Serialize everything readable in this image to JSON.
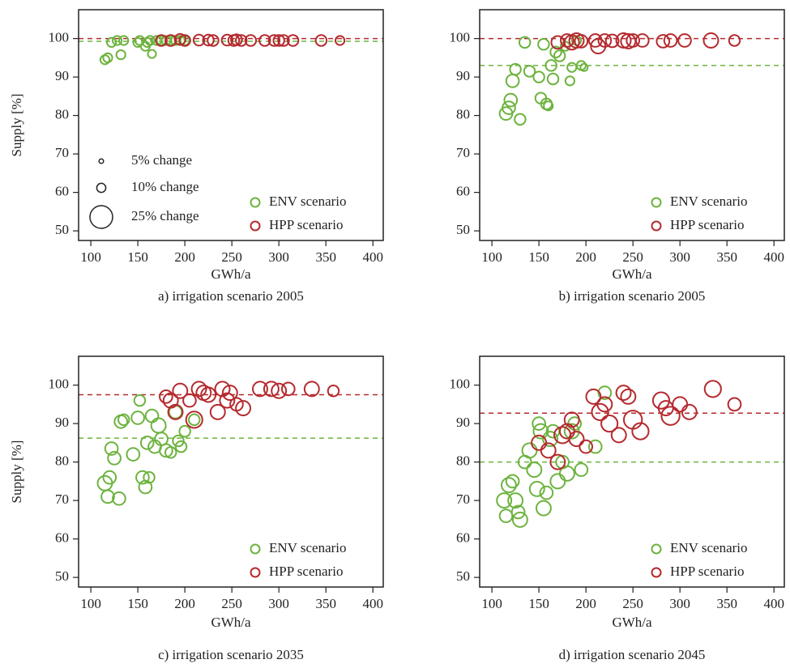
{
  "chart_data": [
    {
      "type": "scatter",
      "caption": "a) irrigation scenario 2005",
      "xlabel": "GWh/a",
      "ylabel": "Supply [%]",
      "xlim": [
        87,
        411
      ],
      "ylim": [
        47.5,
        107.5
      ],
      "xticks": [
        100,
        150,
        200,
        250,
        300,
        350,
        400
      ],
      "yticks": [
        50,
        60,
        70,
        80,
        90,
        100
      ],
      "legend": "lower right",
      "size_legend": {
        "labels": [
          "5% change",
          "10% change",
          "25% change"
        ],
        "sizes": [
          5,
          10,
          25
        ]
      },
      "series": [
        {
          "name": "ENV scenario",
          "color": "#6db33f",
          "reference": 99.3,
          "x": [
            115,
            118,
            122,
            128,
            135,
            132,
            150,
            152,
            158,
            160,
            165,
            163,
            170,
            175,
            180,
            185,
            190,
            195,
            200
          ],
          "values": [
            94.5,
            95,
            99,
            99.5,
            99.5,
            95.8,
            99,
            99.5,
            98,
            99,
            96,
            99.5,
            99.5,
            99.5,
            99.5,
            99.5,
            99.5,
            99.5,
            99.5
          ],
          "sizes": [
            10,
            10,
            10,
            10,
            10,
            10,
            10,
            10,
            10,
            10,
            9,
            10,
            10,
            10,
            10,
            10,
            10,
            10,
            10
          ]
        },
        {
          "name": "HPP scenario",
          "color": "#b52a2e",
          "reference": 100,
          "x": [
            175,
            185,
            195,
            200,
            215,
            225,
            230,
            245,
            252,
            255,
            260,
            270,
            285,
            295,
            300,
            305,
            315,
            345,
            365
          ],
          "values": [
            99.5,
            99.5,
            99.8,
            99.5,
            99.6,
            99.6,
            99.5,
            99.6,
            99.5,
            99.7,
            99.5,
            99.5,
            99.5,
            99.5,
            99.5,
            99.5,
            99.5,
            99.5,
            99.5
          ],
          "sizes": [
            12,
            12,
            12,
            12,
            12,
            12,
            12,
            12,
            12,
            12,
            12,
            12,
            12,
            12,
            12,
            12,
            12,
            12,
            10
          ]
        }
      ]
    },
    {
      "type": "scatter",
      "caption": "b) irrigation scenario 2005",
      "xlabel": "GWh/a",
      "xlim": [
        87,
        411
      ],
      "ylim": [
        47.5,
        107.5
      ],
      "xticks": [
        100,
        150,
        200,
        250,
        300,
        350,
        400
      ],
      "yticks": [
        50,
        60,
        70,
        80,
        90,
        100
      ],
      "legend": "lower right",
      "series": [
        {
          "name": "ENV scenario",
          "color": "#6db33f",
          "reference": 93,
          "x": [
            115,
            118,
            120,
            122,
            125,
            130,
            135,
            140,
            150,
            152,
            155,
            158,
            160,
            163,
            165,
            168,
            172,
            178,
            183,
            185,
            190,
            195,
            198
          ],
          "values": [
            80.5,
            82,
            84,
            89,
            92,
            79,
            99,
            91.5,
            90,
            84.5,
            98.5,
            83,
            82.5,
            93,
            89.5,
            96.5,
            95.5,
            98,
            89,
            92.5,
            99.5,
            93,
            92.5
          ],
          "sizes": [
            14,
            14,
            14,
            14,
            12,
            12,
            12,
            12,
            12,
            12,
            12,
            12,
            10,
            12,
            12,
            12,
            12,
            10,
            10,
            10,
            10,
            10,
            8
          ]
        },
        {
          "name": "HPP scenario",
          "color": "#b52a2e",
          "reference": 100,
          "x": [
            170,
            180,
            185,
            190,
            195,
            210,
            213,
            220,
            228,
            240,
            245,
            250,
            260,
            282,
            290,
            305,
            333,
            358
          ],
          "values": [
            99,
            99.5,
            99,
            99.5,
            99.3,
            99.5,
            98,
            99.5,
            99.4,
            99.5,
            99.3,
            99.5,
            99.5,
            99.3,
            99.5,
            99.5,
            99.5,
            99.5
          ],
          "sizes": [
            14,
            14,
            16,
            16,
            14,
            14,
            16,
            14,
            14,
            16,
            16,
            14,
            14,
            14,
            14,
            14,
            16,
            12
          ]
        }
      ]
    },
    {
      "type": "scatter",
      "caption": "c) irrigation scenario 2035",
      "xlabel": "GWh/a",
      "ylabel": "Supply [%]",
      "xlim": [
        87,
        411
      ],
      "ylim": [
        47.5,
        107.5
      ],
      "xticks": [
        100,
        150,
        200,
        250,
        300,
        350,
        400
      ],
      "yticks": [
        50,
        60,
        70,
        80,
        90,
        100
      ],
      "legend": "lower right",
      "series": [
        {
          "name": "ENV scenario",
          "color": "#6db33f",
          "reference": 86.2,
          "x": [
            115,
            118,
            120,
            122,
            125,
            130,
            132,
            135,
            145,
            150,
            152,
            155,
            158,
            160,
            162,
            165,
            168,
            172,
            175,
            180,
            185,
            190,
            193,
            196,
            200,
            210
          ],
          "values": [
            74.5,
            71,
            76,
            83.5,
            81,
            70.5,
            90.5,
            91,
            82,
            91.5,
            96,
            76,
            73.5,
            85,
            76,
            92,
            84,
            89.5,
            86,
            83,
            82.5,
            93,
            85.5,
            84,
            88,
            91
          ],
          "sizes": [
            16,
            14,
            14,
            14,
            14,
            14,
            14,
            12,
            14,
            14,
            12,
            14,
            14,
            14,
            12,
            14,
            14,
            16,
            14,
            14,
            12,
            14,
            12,
            12,
            12,
            12
          ]
        },
        {
          "name": "HPP scenario",
          "color": "#b52a2e",
          "reference": 97.5,
          "x": [
            180,
            185,
            190,
            195,
            205,
            210,
            215,
            220,
            225,
            235,
            240,
            245,
            248,
            255,
            262,
            280,
            292,
            300,
            310,
            335,
            358
          ],
          "values": [
            97,
            96,
            93,
            98.5,
            96,
            91,
            99,
            98,
            97.5,
            93,
            99,
            96,
            98,
            95,
            94,
            99,
            99,
            98.5,
            99,
            99,
            98.5
          ],
          "sizes": [
            14,
            16,
            16,
            16,
            14,
            18,
            16,
            16,
            16,
            16,
            16,
            16,
            16,
            14,
            16,
            16,
            16,
            16,
            14,
            16,
            12
          ]
        }
      ]
    },
    {
      "type": "scatter",
      "caption": "d) irrigation scenario 2045",
      "xlabel": "GWh/a",
      "xlim": [
        87,
        411
      ],
      "ylim": [
        47.5,
        107.5
      ],
      "xticks": [
        100,
        150,
        200,
        250,
        300,
        350,
        400
      ],
      "yticks": [
        50,
        60,
        70,
        80,
        90,
        100
      ],
      "legend": "lower right",
      "series": [
        {
          "name": "ENV scenario",
          "color": "#6db33f",
          "reference": 80,
          "x": [
            113,
            115,
            118,
            122,
            125,
            128,
            130,
            135,
            140,
            145,
            148,
            150,
            152,
            155,
            158,
            162,
            165,
            170,
            175,
            180,
            185,
            188,
            195,
            210,
            220
          ],
          "values": [
            70,
            66,
            74,
            75,
            70,
            67,
            65,
            80,
            83,
            78,
            73,
            90,
            88,
            68,
            72,
            86,
            88,
            75,
            80,
            77,
            88,
            90,
            78,
            84,
            98
          ],
          "sizes": [
            16,
            14,
            16,
            14,
            16,
            14,
            16,
            14,
            16,
            16,
            16,
            14,
            16,
            16,
            14,
            16,
            14,
            16,
            14,
            16,
            16,
            14,
            14,
            14,
            14
          ]
        },
        {
          "name": "HPP scenario",
          "color": "#b52a2e",
          "reference": 92.7,
          "x": [
            150,
            160,
            170,
            175,
            180,
            185,
            190,
            200,
            208,
            215,
            220,
            225,
            235,
            240,
            245,
            250,
            258,
            280,
            285,
            290,
            300,
            310,
            335,
            358
          ],
          "values": [
            85,
            83,
            80,
            87,
            88,
            91,
            86,
            84,
            97,
            93,
            95,
            90,
            87,
            98,
            97,
            91,
            88,
            96,
            94,
            92,
            95,
            93,
            99,
            95
          ],
          "sizes": [
            16,
            16,
            16,
            18,
            16,
            16,
            16,
            14,
            16,
            18,
            16,
            18,
            16,
            16,
            16,
            20,
            18,
            18,
            16,
            20,
            16,
            16,
            18,
            14
          ]
        }
      ]
    }
  ]
}
